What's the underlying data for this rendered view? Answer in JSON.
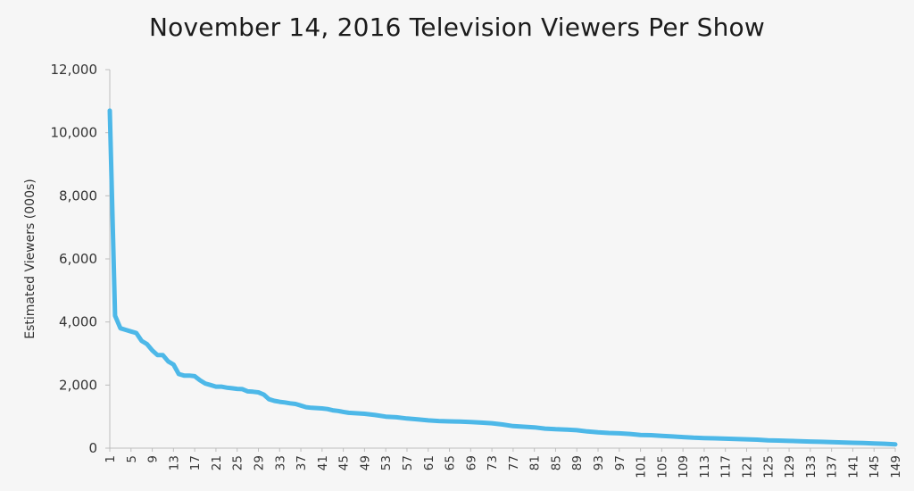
{
  "chart_data": {
    "type": "line",
    "title": "November 14, 2016 Television Viewers Per Show",
    "xlabel": "",
    "ylabel": "Estimated Viewers (000s)",
    "xlim": [
      1,
      149
    ],
    "ylim": [
      0,
      12000
    ],
    "grid": false,
    "legend": "none",
    "y_ticks": [
      "0",
      "2,000",
      "4,000",
      "6,000",
      "8,000",
      "10,000",
      "12,000"
    ],
    "y_tick_values": [
      0,
      2000,
      4000,
      6000,
      8000,
      10000,
      12000
    ],
    "x_ticks": [
      "1",
      "5",
      "9",
      "13",
      "17",
      "21",
      "25",
      "29",
      "33",
      "37",
      "41",
      "45",
      "49",
      "53",
      "57",
      "61",
      "65",
      "69",
      "73",
      "77",
      "81",
      "85",
      "89",
      "93",
      "97",
      "101",
      "105",
      "109",
      "113",
      "117",
      "121",
      "125",
      "129",
      "133",
      "137",
      "141",
      "145",
      "149"
    ],
    "series": [
      {
        "color": "#4db8e8",
        "points": [
          [
            1,
            10700
          ],
          [
            2,
            4200
          ],
          [
            3,
            3800
          ],
          [
            4,
            3750
          ],
          [
            5,
            3700
          ],
          [
            6,
            3650
          ],
          [
            7,
            3400
          ],
          [
            8,
            3300
          ],
          [
            9,
            3100
          ],
          [
            10,
            2950
          ],
          [
            11,
            2950
          ],
          [
            12,
            2750
          ],
          [
            13,
            2650
          ],
          [
            14,
            2350
          ],
          [
            15,
            2300
          ],
          [
            16,
            2300
          ],
          [
            17,
            2280
          ],
          [
            18,
            2150
          ],
          [
            19,
            2050
          ],
          [
            20,
            2000
          ],
          [
            21,
            1950
          ],
          [
            22,
            1950
          ],
          [
            23,
            1920
          ],
          [
            24,
            1900
          ],
          [
            25,
            1880
          ],
          [
            26,
            1870
          ],
          [
            27,
            1800
          ],
          [
            28,
            1790
          ],
          [
            29,
            1770
          ],
          [
            30,
            1700
          ],
          [
            31,
            1550
          ],
          [
            32,
            1500
          ],
          [
            33,
            1470
          ],
          [
            34,
            1450
          ],
          [
            35,
            1420
          ],
          [
            36,
            1400
          ],
          [
            37,
            1350
          ],
          [
            38,
            1300
          ],
          [
            39,
            1280
          ],
          [
            40,
            1270
          ],
          [
            41,
            1260
          ],
          [
            42,
            1240
          ],
          [
            43,
            1200
          ],
          [
            44,
            1180
          ],
          [
            45,
            1150
          ],
          [
            46,
            1120
          ],
          [
            47,
            1110
          ],
          [
            48,
            1100
          ],
          [
            49,
            1090
          ],
          [
            51,
            1050
          ],
          [
            53,
            1000
          ],
          [
            55,
            980
          ],
          [
            57,
            940
          ],
          [
            59,
            910
          ],
          [
            61,
            880
          ],
          [
            63,
            860
          ],
          [
            65,
            850
          ],
          [
            67,
            840
          ],
          [
            69,
            830
          ],
          [
            71,
            810
          ],
          [
            73,
            790
          ],
          [
            75,
            750
          ],
          [
            77,
            700
          ],
          [
            79,
            680
          ],
          [
            81,
            660
          ],
          [
            83,
            620
          ],
          [
            85,
            600
          ],
          [
            87,
            590
          ],
          [
            89,
            570
          ],
          [
            91,
            530
          ],
          [
            93,
            500
          ],
          [
            95,
            480
          ],
          [
            97,
            470
          ],
          [
            99,
            450
          ],
          [
            101,
            420
          ],
          [
            103,
            410
          ],
          [
            105,
            390
          ],
          [
            107,
            370
          ],
          [
            109,
            350
          ],
          [
            111,
            330
          ],
          [
            113,
            320
          ],
          [
            115,
            310
          ],
          [
            117,
            300
          ],
          [
            119,
            290
          ],
          [
            121,
            280
          ],
          [
            123,
            270
          ],
          [
            125,
            250
          ],
          [
            127,
            240
          ],
          [
            129,
            230
          ],
          [
            131,
            220
          ],
          [
            133,
            210
          ],
          [
            135,
            200
          ],
          [
            137,
            190
          ],
          [
            139,
            180
          ],
          [
            141,
            170
          ],
          [
            143,
            160
          ],
          [
            145,
            150
          ],
          [
            147,
            140
          ],
          [
            149,
            120
          ]
        ]
      }
    ]
  }
}
